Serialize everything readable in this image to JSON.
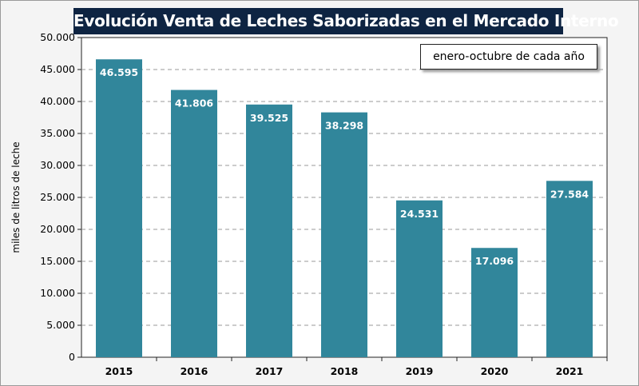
{
  "chart_data": {
    "type": "bar",
    "title": "Evolución Venta de Leches Saborizadas en el Mercado Interno",
    "annotation": "enero-octubre de cada año",
    "xlabel": "",
    "ylabel": "miles de litros de leche",
    "categories": [
      "2015",
      "2016",
      "2017",
      "2018",
      "2019",
      "2020",
      "2021"
    ],
    "values": [
      46595,
      41806,
      39525,
      38298,
      24531,
      17096,
      27584
    ],
    "data_labels": [
      "46.595",
      "41.806",
      "39.525",
      "38.298",
      "24.531",
      "17.096",
      "27.584"
    ],
    "ylim": [
      0,
      50000
    ],
    "yticks": [
      "0",
      "5.000",
      "10.000",
      "15.000",
      "20.000",
      "25.000",
      "30.000",
      "35.000",
      "40.000",
      "45.000",
      "50.000"
    ],
    "grid": true,
    "bar_color": "#31869b"
  }
}
